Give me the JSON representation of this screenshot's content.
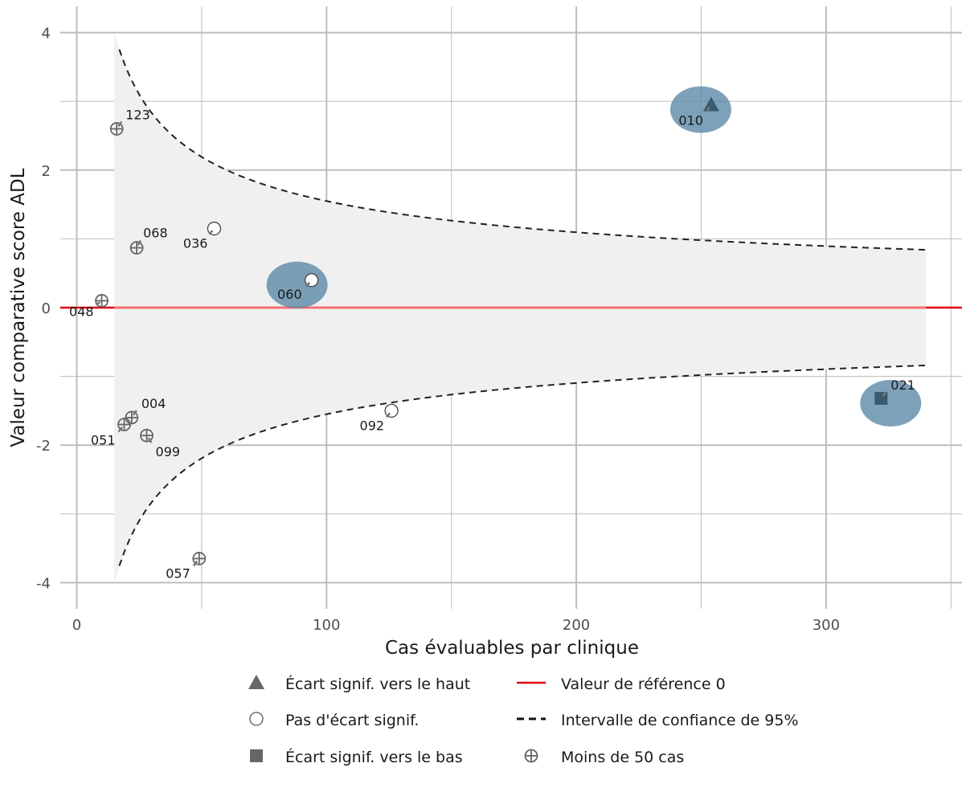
{
  "chart_data": {
    "type": "scatter",
    "xlabel": "Cas évaluables par clinique",
    "ylabel": "Valeur comparative score ADL",
    "xlim": [
      -7,
      350
    ],
    "ylim": [
      -4.4,
      4.4
    ],
    "x_ticks": [
      0,
      100,
      200,
      300
    ],
    "y_ticks": [
      -4,
      -2,
      0,
      2,
      4
    ],
    "x_tick_labels": [
      "0",
      "100",
      "200",
      "300"
    ],
    "y_tick_labels": [
      "-4",
      "-2",
      "0",
      "2",
      "4"
    ],
    "grid": true,
    "legend_position": "bottom",
    "reference_line": {
      "y": 0,
      "label": "Valeur de référence 0",
      "color": "#e0000b"
    },
    "confidence_band": {
      "label": "Intervalle de confiance de 95%",
      "x_range": [
        15,
        340
      ],
      "formula": "±15.5/sqrt(x)"
    },
    "categories": {
      "up": "Écart signif. vers le haut",
      "none": "Pas d'écart signif.",
      "down": "Écart signif. vers le bas",
      "few": "Moins de 50 cas"
    },
    "points": [
      {
        "id": "123",
        "x": 16,
        "y": 2.6,
        "category": "few",
        "highlight": false
      },
      {
        "id": "068",
        "x": 24,
        "y": 0.87,
        "category": "few",
        "highlight": false
      },
      {
        "id": "036",
        "x": 55,
        "y": 1.15,
        "category": "none",
        "highlight": false
      },
      {
        "id": "048",
        "x": 10,
        "y": 0.1,
        "category": "few",
        "highlight": false
      },
      {
        "id": "060",
        "x": 94,
        "y": 0.4,
        "category": "none",
        "highlight": true
      },
      {
        "id": "010",
        "x": 254,
        "y": 2.95,
        "category": "up",
        "highlight": true
      },
      {
        "id": "021",
        "x": 322,
        "y": -1.32,
        "category": "down",
        "highlight": true
      },
      {
        "id": "004",
        "x": 22,
        "y": -1.6,
        "category": "few",
        "highlight": false
      },
      {
        "id": "051",
        "x": 19,
        "y": -1.7,
        "category": "few",
        "highlight": false
      },
      {
        "id": "099",
        "x": 28,
        "y": -1.86,
        "category": "few",
        "highlight": false
      },
      {
        "id": "092",
        "x": 126,
        "y": -1.5,
        "category": "none",
        "highlight": false
      },
      {
        "id": "057",
        "x": 49,
        "y": -3.65,
        "category": "few",
        "highlight": false
      }
    ],
    "legend": [
      {
        "key": "up",
        "label": "Écart signif. vers le haut",
        "symbol": "triangle"
      },
      {
        "key": "ref",
        "label": "Valeur de référence 0",
        "symbol": "red-line"
      },
      {
        "key": "none",
        "label": "Pas d'écart signif.",
        "symbol": "open-circle"
      },
      {
        "key": "ci",
        "label": "Intervalle de confiance de 95%",
        "symbol": "dashed-line"
      },
      {
        "key": "down",
        "label": "Écart signif. vers le bas",
        "symbol": "square"
      },
      {
        "key": "few",
        "label": "Moins de 50 cas",
        "symbol": "crossed-circle"
      }
    ]
  },
  "colors": {
    "grid": "#bdbdbd",
    "band": "#f0f0f0",
    "reference": "#e0000b",
    "highlight": "#5c8aa8",
    "point_dark": "#3a5a70",
    "point_gray": "#666666",
    "label_line": "#777777"
  }
}
